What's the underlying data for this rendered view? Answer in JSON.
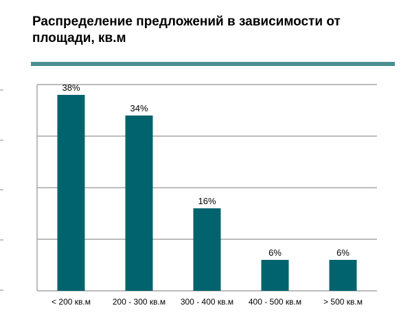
{
  "title": "Распределение предложений в зависимости от площади, кв.м",
  "colors": {
    "bar": "#00636d",
    "rule": "#4b8f92",
    "grid": "#a6a6a6"
  },
  "chart_data": {
    "type": "bar",
    "title": "Распределение предложений в зависимости от площади, кв.м",
    "categories": [
      "< 200 кв.м",
      "200 - 300 кв.м",
      "300 - 400 кв.м",
      "400 - 500 кв.м",
      "> 500 кв.м"
    ],
    "values": [
      38,
      34,
      16,
      6,
      6
    ],
    "data_labels": [
      "38%",
      "34%",
      "16%",
      "6%",
      "6%"
    ],
    "ylim": [
      0,
      40
    ],
    "grid": true,
    "xlabel": "",
    "ylabel": ""
  }
}
